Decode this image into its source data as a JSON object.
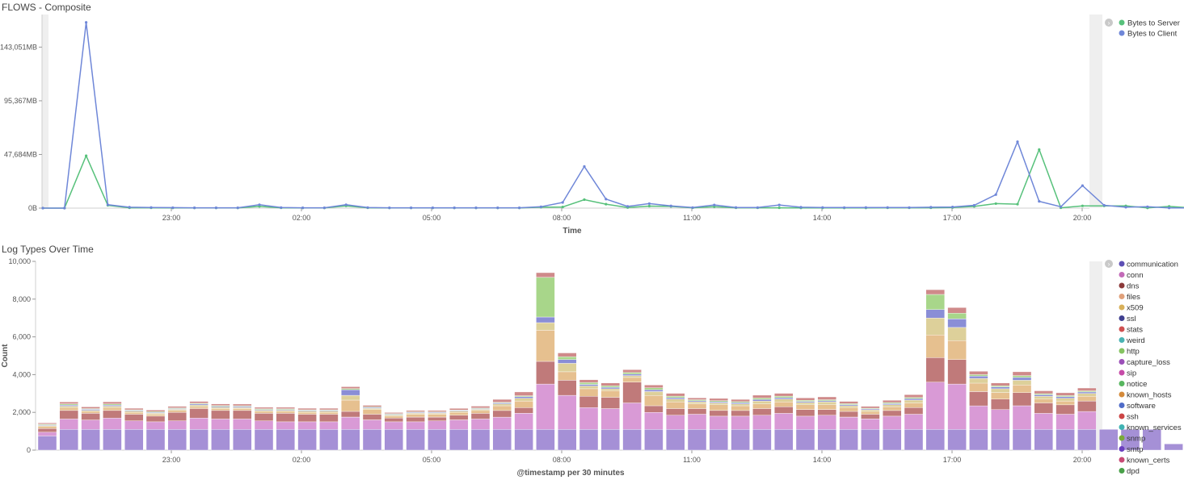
{
  "panels": [
    {
      "title": "FLOWS - Composite"
    },
    {
      "title": "Log Types Over Time"
    }
  ],
  "chart_data": [
    {
      "type": "line",
      "title": "FLOWS - Composite",
      "xlabel": "Time",
      "ylabel": "",
      "x_tick_labels": [
        "23:00",
        "02:00",
        "05:00",
        "08:00",
        "11:00",
        "14:00",
        "17:00",
        "20:00"
      ],
      "y_tick_labels": [
        "0B",
        "47,684MB",
        "95,367MB",
        "143,051MB"
      ],
      "ylim": [
        0,
        172000
      ],
      "legend_position": "top-right",
      "series": [
        {
          "name": "Bytes to Server",
          "color": "#57c17b",
          "values": [
            0,
            0,
            46500,
            2500,
            300,
            300,
            200,
            200,
            200,
            200,
            1500,
            300,
            200,
            200,
            2000,
            300,
            200,
            200,
            200,
            200,
            200,
            200,
            200,
            800,
            1000,
            7500,
            3500,
            500,
            1800,
            1500,
            300,
            1200,
            300,
            300,
            300,
            200,
            200,
            200,
            200,
            300,
            300,
            300,
            500,
            1500,
            4000,
            3500,
            52000,
            300,
            2000,
            2000,
            2000,
            200,
            1500,
            200
          ]
        },
        {
          "name": "Bytes to Client",
          "color": "#6f87d8",
          "values": [
            0,
            0,
            165000,
            3000,
            800,
            600,
            400,
            300,
            300,
            300,
            3000,
            500,
            300,
            300,
            3000,
            500,
            300,
            300,
            300,
            300,
            300,
            300,
            300,
            1200,
            5000,
            37000,
            8000,
            1500,
            4000,
            2000,
            500,
            2800,
            600,
            500,
            2800,
            800,
            600,
            500,
            600,
            600,
            500,
            800,
            1000,
            2500,
            12000,
            59000,
            6000,
            1200,
            20000,
            2500,
            800,
            1200,
            200,
            200
          ]
        }
      ]
    },
    {
      "type": "bar",
      "stacked": true,
      "title": "Log Types Over Time",
      "xlabel": "@timestamp per 30 minutes",
      "ylabel": "Count",
      "x_tick_labels": [
        "23:00",
        "02:00",
        "05:00",
        "08:00",
        "11:00",
        "14:00",
        "17:00",
        "20:00"
      ],
      "y_tick_labels": [
        "0",
        "2,000",
        "4,000",
        "6,000",
        "8,000",
        "10,000"
      ],
      "ylim": [
        0,
        10000
      ],
      "legend_position": "right",
      "legend": [
        {
          "name": "communication",
          "color": "#5d4fb5"
        },
        {
          "name": "conn",
          "color": "#c36ab8"
        },
        {
          "name": "dns",
          "color": "#8c3a3a"
        },
        {
          "name": "files",
          "color": "#e0a07a"
        },
        {
          "name": "x509",
          "color": "#d8b05a"
        },
        {
          "name": "ssl",
          "color": "#3f3f8f"
        },
        {
          "name": "stats",
          "color": "#cf5050"
        },
        {
          "name": "weird",
          "color": "#49b3b3"
        },
        {
          "name": "http",
          "color": "#85c361"
        },
        {
          "name": "capture_loss",
          "color": "#9b4fb8"
        },
        {
          "name": "sip",
          "color": "#c64ba8"
        },
        {
          "name": "notice",
          "color": "#57b65f"
        },
        {
          "name": "known_hosts",
          "color": "#d48a3a"
        },
        {
          "name": "software",
          "color": "#4f6cc8"
        },
        {
          "name": "ssh",
          "color": "#cc4545"
        },
        {
          "name": "known_services",
          "color": "#3fb3b3"
        },
        {
          "name": "snmp",
          "color": "#7aaa3a"
        },
        {
          "name": "smtp",
          "color": "#6b3fbf"
        },
        {
          "name": "known_certs",
          "color": "#c84a75"
        },
        {
          "name": "dpd",
          "color": "#48a048"
        }
      ],
      "series": [
        {
          "name": "communication",
          "color": "#a590d6",
          "values": [
            750,
            1100,
            1100,
            1100,
            1100,
            1100,
            1100,
            1100,
            1100,
            1100,
            1100,
            1100,
            1100,
            1100,
            1100,
            1100,
            1100,
            1100,
            1100,
            1100,
            1100,
            1100,
            1100,
            1100,
            1100,
            1100,
            1100,
            1100,
            1100,
            1100,
            1100,
            1100,
            1100,
            1100,
            1100,
            1100,
            1100,
            1100,
            1100,
            1100,
            1100,
            1100,
            1100,
            1100,
            1100,
            1100,
            1100,
            1100,
            1100,
            1100,
            1100,
            1100,
            330
          ]
        },
        {
          "name": "conn",
          "color": "#d99ad6",
          "values": [
            200,
            550,
            500,
            600,
            450,
            400,
            450,
            600,
            550,
            550,
            450,
            400,
            400,
            400,
            650,
            500,
            400,
            400,
            450,
            500,
            550,
            650,
            850,
            2400,
            1800,
            1150,
            1100,
            1400,
            900,
            750,
            800,
            700,
            700,
            750,
            850,
            700,
            750,
            650,
            550,
            700,
            800,
            2500,
            2400,
            1250,
            1050,
            1250,
            850,
            800,
            950
          ]
        },
        {
          "name": "dns",
          "color": "#c07a7a",
          "values": [
            200,
            450,
            350,
            400,
            350,
            300,
            450,
            500,
            450,
            450,
            400,
            450,
            400,
            400,
            300,
            300,
            200,
            250,
            200,
            250,
            300,
            350,
            300,
            1200,
            800,
            600,
            600,
            1100,
            350,
            350,
            300,
            300,
            300,
            350,
            350,
            350,
            300,
            300,
            250,
            300,
            350,
            1300,
            1300,
            750,
            550,
            700,
            550,
            500,
            550
          ]
        },
        {
          "name": "files",
          "color": "#e6c08f",
          "values": [
            100,
            150,
            100,
            150,
            100,
            100,
            100,
            100,
            100,
            100,
            100,
            100,
            100,
            100,
            600,
            250,
            100,
            150,
            150,
            150,
            150,
            250,
            350,
            1650,
            450,
            400,
            350,
            250,
            550,
            350,
            250,
            300,
            250,
            250,
            250,
            250,
            250,
            200,
            150,
            200,
            250,
            1200,
            1000,
            450,
            350,
            400,
            200,
            200,
            250
          ]
        },
        {
          "name": "x509",
          "color": "#ddd09a",
          "values": [
            50,
            80,
            60,
            80,
            60,
            60,
            60,
            80,
            70,
            60,
            60,
            60,
            60,
            60,
            250,
            60,
            60,
            60,
            60,
            60,
            60,
            100,
            150,
            400,
            450,
            150,
            100,
            100,
            200,
            150,
            100,
            100,
            100,
            150,
            150,
            120,
            150,
            100,
            80,
            100,
            150,
            900,
            700,
            250,
            200,
            250,
            150,
            150,
            150
          ]
        },
        {
          "name": "ssl",
          "color": "#8a8ed6",
          "values": [
            40,
            60,
            50,
            60,
            40,
            40,
            40,
            60,
            50,
            50,
            40,
            40,
            40,
            40,
            300,
            40,
            40,
            40,
            40,
            40,
            40,
            50,
            80,
            300,
            200,
            80,
            80,
            80,
            100,
            80,
            60,
            60,
            60,
            80,
            80,
            60,
            60,
            60,
            50,
            60,
            80,
            450,
            450,
            120,
            100,
            150,
            80,
            80,
            80
          ]
        },
        {
          "name": "http",
          "color": "#a8d68a",
          "values": [
            40,
            60,
            40,
            60,
            40,
            40,
            40,
            40,
            40,
            40,
            40,
            40,
            40,
            40,
            60,
            40,
            30,
            30,
            30,
            30,
            30,
            40,
            50,
            2100,
            150,
            100,
            80,
            80,
            100,
            80,
            60,
            60,
            60,
            80,
            80,
            60,
            60,
            50,
            40,
            60,
            60,
            800,
            300,
            80,
            60,
            100,
            60,
            60,
            60
          ]
        },
        {
          "name": "stats",
          "color": "#cf8a8a",
          "values": [
            60,
            100,
            90,
            110,
            80,
            80,
            80,
            100,
            90,
            90,
            80,
            80,
            80,
            80,
            100,
            80,
            60,
            70,
            70,
            80,
            100,
            150,
            200,
            250,
            200,
            150,
            150,
            150,
            150,
            150,
            100,
            120,
            120,
            150,
            150,
            130,
            150,
            120,
            100,
            120,
            150,
            250,
            300,
            180,
            150,
            200,
            150,
            150,
            150
          ]
        }
      ]
    }
  ]
}
